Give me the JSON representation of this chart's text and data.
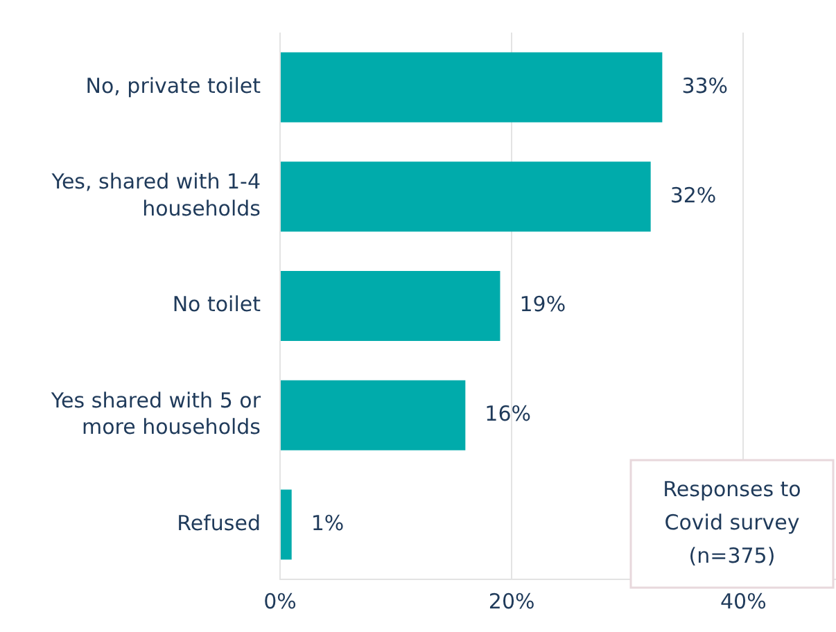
{
  "chart_data": {
    "type": "bar",
    "orientation": "horizontal",
    "categories": [
      "No, private toilet",
      "Yes, shared with 1-4 households",
      "No toilet",
      "Yes shared with 5 or more households",
      "Refused"
    ],
    "values": [
      33,
      32,
      19,
      16,
      1
    ],
    "value_labels": [
      "33%",
      "32%",
      "19%",
      "16%",
      "1%"
    ],
    "color": "#00abab",
    "xlim": [
      0,
      48
    ],
    "xticks": [
      {
        "value": 0,
        "label": "0%"
      },
      {
        "value": 20,
        "label": "20%"
      },
      {
        "value": 40,
        "label": "40%"
      }
    ],
    "grid": "x",
    "annotations": [
      "Responses to Covid survey (n=375)"
    ]
  }
}
